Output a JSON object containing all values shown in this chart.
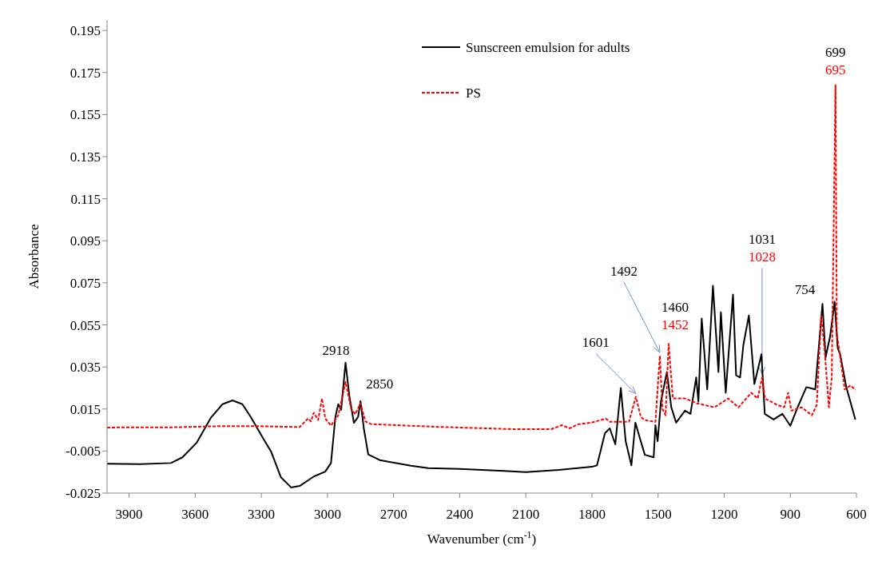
{
  "chart_data": {
    "type": "line",
    "xlabel": "Wavenumber (cm$^{-1}$)",
    "ylabel": "Absorbance",
    "xlim": [
      4000,
      600
    ],
    "xticks": [
      3900,
      3600,
      3300,
      3000,
      2700,
      2400,
      2100,
      1800,
      1500,
      1200,
      900,
      600
    ],
    "ylim": [
      -0.025,
      0.2
    ],
    "yticks": [
      -0.025,
      -0.005,
      0.015,
      0.035,
      0.055,
      0.075,
      0.095,
      0.115,
      0.135,
      0.155,
      0.175,
      0.195
    ],
    "legend": "top",
    "marker": "none",
    "series": [
      {
        "name": "Sunscreen emulsion for adults",
        "color": "#000000",
        "line_style": "solid",
        "x": [
          4000,
          3850,
          3710,
          3658,
          3593,
          3528,
          3476,
          3431,
          3386,
          3347,
          3295,
          3256,
          3211,
          3165,
          3126,
          3062,
          3010,
          2984,
          2964,
          2951,
          2938,
          2918,
          2900,
          2880,
          2861,
          2850,
          2835,
          2815,
          2763,
          2621,
          2543,
          2400,
          2200,
          2100,
          1950,
          1800,
          1777,
          1741,
          1719,
          1694,
          1669,
          1647,
          1621,
          1603,
          1585,
          1560,
          1520,
          1512,
          1502,
          1487,
          1460,
          1440,
          1418,
          1378,
          1353,
          1327,
          1317,
          1302,
          1277,
          1251,
          1226,
          1215,
          1193,
          1175,
          1160,
          1146,
          1128,
          1113,
          1088,
          1063,
          1031,
          1016,
          976,
          936,
          900,
          867,
          827,
          787,
          754,
          740,
          720,
          699,
          685,
          674,
          646,
          605
        ],
        "values": [
          -0.011,
          -0.0112,
          -0.0107,
          -0.008,
          -0.001,
          0.011,
          0.0173,
          0.0191,
          0.0173,
          0.011,
          0.0016,
          -0.0052,
          -0.0175,
          -0.0223,
          -0.0216,
          -0.0171,
          -0.0148,
          -0.0107,
          0.0112,
          0.0173,
          0.0146,
          0.037,
          0.0207,
          0.0084,
          0.0112,
          0.0187,
          0.0057,
          -0.0066,
          -0.0093,
          -0.012,
          -0.0131,
          -0.0135,
          -0.0145,
          -0.015,
          -0.014,
          -0.0125,
          -0.0118,
          0.0035,
          0.0058,
          -0.0018,
          0.025,
          -0.0003,
          -0.0118,
          0.0085,
          0.002,
          -0.0068,
          -0.008,
          0.0073,
          -0.0003,
          0.0185,
          0.0326,
          0.0158,
          0.0085,
          0.0142,
          0.0127,
          0.03,
          0.0185,
          0.058,
          0.0243,
          0.0736,
          0.0326,
          0.061,
          0.0227,
          0.0484,
          0.0694,
          0.031,
          0.03,
          0.0454,
          0.0595,
          0.0269,
          0.041,
          0.0127,
          0.01,
          0.0127,
          0.007,
          0.0158,
          0.0254,
          0.0243,
          0.065,
          0.0395,
          0.0492,
          0.066,
          0.044,
          0.041,
          0.0254,
          0.01
        ]
      },
      {
        "name": "PS",
        "color": "#ff0000",
        "line_style": "dashed",
        "x": [
          4000,
          3700,
          3500,
          3300,
          3126,
          3088,
          3075,
          3062,
          3042,
          3025,
          3010,
          2984,
          2951,
          2918,
          2893,
          2874,
          2850,
          2828,
          2802,
          2528,
          2166,
          1984,
          1937,
          1901,
          1864,
          1803,
          1737,
          1719,
          1632,
          1601,
          1578,
          1560,
          1512,
          1492,
          1480,
          1466,
          1452,
          1433,
          1378,
          1324,
          1244,
          1182,
          1135,
          1077,
          1048,
          1028,
          1015,
          961,
          928,
          910,
          895,
          849,
          802,
          780,
          760,
          745,
          725,
          712,
          695,
          689,
          653,
          627,
          605
        ],
        "values": [
          0.0062,
          0.0063,
          0.0068,
          0.0068,
          0.0064,
          0.0105,
          0.0091,
          0.0132,
          0.0098,
          0.02,
          0.0105,
          0.0071,
          0.0119,
          0.0278,
          0.0153,
          0.0125,
          0.0177,
          0.0091,
          0.0078,
          0.0066,
          0.0054,
          0.0054,
          0.0073,
          0.0058,
          0.0077,
          0.0085,
          0.0104,
          0.0089,
          0.0089,
          0.0208,
          0.0112,
          0.0097,
          0.0089,
          0.0403,
          0.015,
          0.012,
          0.046,
          0.02,
          0.02,
          0.0177,
          0.0158,
          0.02,
          0.0158,
          0.0227,
          0.02,
          0.03,
          0.02,
          0.017,
          0.0158,
          0.0227,
          0.0142,
          0.0158,
          0.012,
          0.017,
          0.0595,
          0.044,
          0.0158,
          0.03,
          0.169,
          0.051,
          0.0243,
          0.0262,
          0.024
        ]
      }
    ],
    "annotations": [
      {
        "text": "2918",
        "x": 2918,
        "y": 0.037
      },
      {
        "text": "2850",
        "x": 2850,
        "y": 0.0187
      },
      {
        "text": "1601",
        "x": 1601,
        "y": 0.0208
      },
      {
        "text": "1492",
        "x": 1492,
        "y": 0.0403
      },
      "1460",
      {
        "text": "1452",
        "x": 1452,
        "y": 0.046
      },
      "1031",
      {
        "text": "1028",
        "x": 1028,
        "y": 0.03
      },
      {
        "text": "754",
        "x": 754,
        "y": 0.065
      },
      "699",
      {
        "text": "695",
        "x": 695,
        "y": 0.169
      }
    ]
  }
}
